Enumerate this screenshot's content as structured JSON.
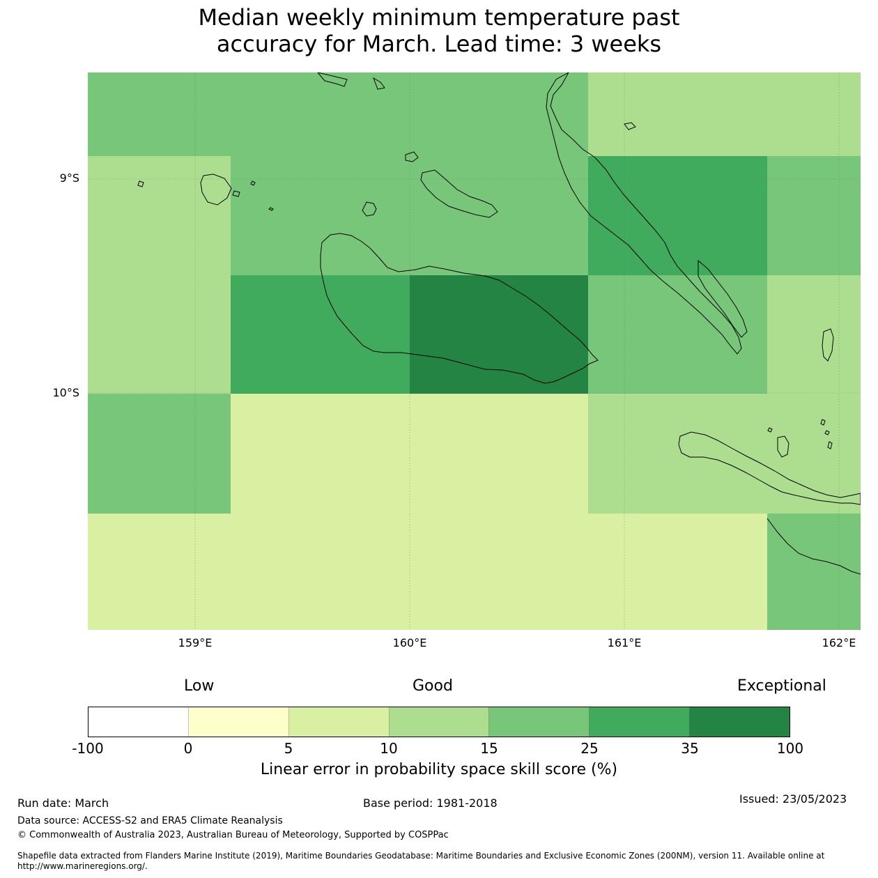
{
  "title": {
    "line1": "Median weekly minimum temperature past",
    "line2": "accuracy for March. Lead time: 3 weeks"
  },
  "map": {
    "lat_labels": [
      "9°S",
      "10°S"
    ],
    "lon_labels": [
      "159°E",
      "160°E",
      "161°E",
      "162°E"
    ],
    "colors": {
      "below0": "#ffffff",
      "c0_5": "#ffffcc",
      "c5_10": "#d9f0a3",
      "c10_15": "#addd8e",
      "c15_25": "#78c679",
      "c25_35": "#41ab5d",
      "c35_100": "#238443",
      "coast": "#000000"
    }
  },
  "colorbar": {
    "categories": [
      "Low",
      "Good",
      "Exceptional"
    ],
    "ticks": [
      "-100",
      "0",
      "5",
      "10",
      "15",
      "25",
      "35",
      "100"
    ],
    "colors": [
      "#ffffff",
      "#ffffcc",
      "#d9f0a3",
      "#addd8e",
      "#78c679",
      "#41ab5d",
      "#238443"
    ],
    "label": "Linear error in probability space skill score (%)"
  },
  "footer": {
    "run_date": "Run date: March",
    "base_period": "Base period: 1981-2018",
    "issued": "Issued: 23/05/2023",
    "data_source": "Data source: ACCESS-S2 and ERA5 Climate Reanalysis",
    "copyright": "© Commonwealth of Australia 2023, Australian Bureau of Meteorology, Supported by COSPPac",
    "shapefile_line1": "Shapefile data extracted from Flanders Marine Institute (2019), Maritime Boundaries Geodatabase: Maritime Boundaries and Exclusive Economic Zones (200NM), version 11. Available online at",
    "shapefile_line2": "http://www.marineregions.org/."
  }
}
